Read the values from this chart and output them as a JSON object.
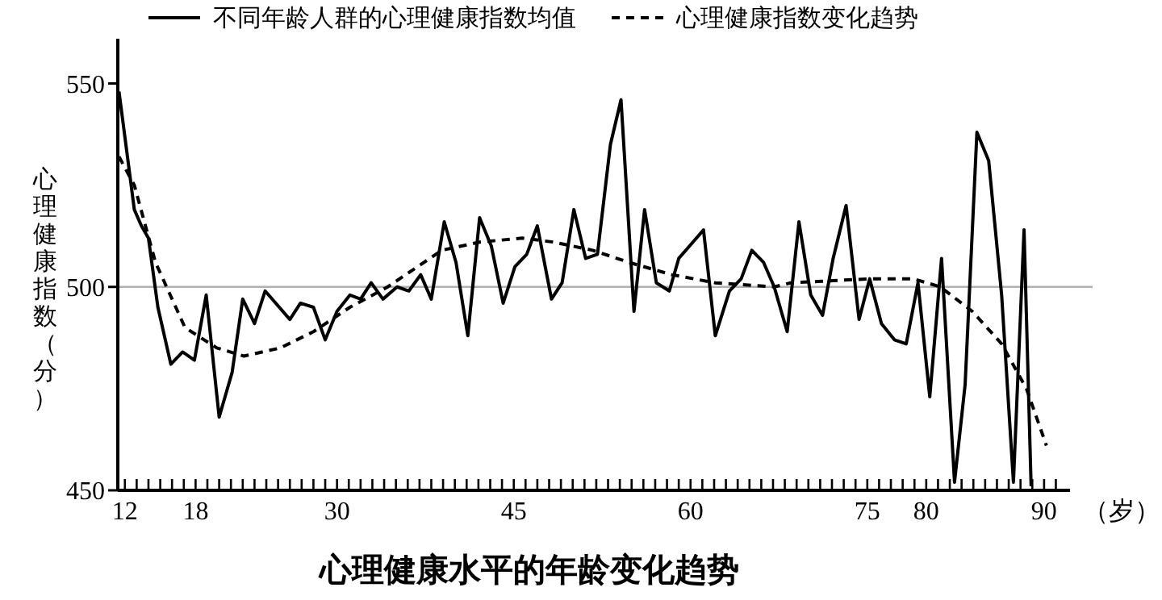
{
  "chart_data": {
    "type": "line",
    "title": "心理健康水平的年龄变化趋势",
    "xlabel": "（岁）",
    "ylabel": "心理健康指数（分）",
    "legend": "top",
    "xlim": [
      11.4,
      92.2
    ],
    "ylim": [
      450,
      561
    ],
    "xticks": [
      12,
      {
        "value": 13,
        "label": null
      },
      {
        "value": 14,
        "label": null
      },
      {
        "value": 15,
        "label": null
      },
      {
        "value": 16,
        "label": null
      },
      {
        "value": 17,
        "label": null
      },
      18,
      {
        "value": 19,
        "label": null
      },
      {
        "value": 20,
        "label": null
      },
      {
        "value": 21,
        "label": null
      },
      {
        "value": 22,
        "label": null
      },
      {
        "value": 23,
        "label": null
      },
      {
        "value": 24,
        "label": null
      },
      {
        "value": 25,
        "label": null
      },
      {
        "value": 26,
        "label": null
      },
      {
        "value": 27,
        "label": null
      },
      {
        "value": 28,
        "label": null
      },
      {
        "value": 29,
        "label": null
      },
      30,
      {
        "value": 31,
        "label": null
      },
      {
        "value": 32,
        "label": null
      },
      {
        "value": 33,
        "label": null
      },
      {
        "value": 34,
        "label": null
      },
      {
        "value": 35,
        "label": null
      },
      {
        "value": 36,
        "label": null
      },
      {
        "value": 37,
        "label": null
      },
      {
        "value": 38,
        "label": null
      },
      {
        "value": 39,
        "label": null
      },
      {
        "value": 40,
        "label": null
      },
      {
        "value": 41,
        "label": null
      },
      {
        "value": 42,
        "label": null
      },
      {
        "value": 43,
        "label": null
      },
      {
        "value": 44,
        "label": null
      },
      45,
      {
        "value": 46,
        "label": null
      },
      {
        "value": 47,
        "label": null
      },
      {
        "value": 48,
        "label": null
      },
      {
        "value": 49,
        "label": null
      },
      {
        "value": 50,
        "label": null
      },
      {
        "value": 51,
        "label": null
      },
      {
        "value": 52,
        "label": null
      },
      {
        "value": 53,
        "label": null
      },
      {
        "value": 54,
        "label": null
      },
      {
        "value": 55,
        "label": null
      },
      {
        "value": 56,
        "label": null
      },
      {
        "value": 57,
        "label": null
      },
      {
        "value": 58,
        "label": null
      },
      {
        "value": 59,
        "label": null
      },
      60,
      {
        "value": 61,
        "label": null
      },
      {
        "value": 62,
        "label": null
      },
      {
        "value": 63,
        "label": null
      },
      {
        "value": 64,
        "label": null
      },
      {
        "value": 65,
        "label": null
      },
      {
        "value": 66,
        "label": null
      },
      {
        "value": 67,
        "label": null
      },
      {
        "value": 68,
        "label": null
      },
      {
        "value": 69,
        "label": null
      },
      {
        "value": 70,
        "label": null
      },
      {
        "value": 71,
        "label": null
      },
      {
        "value": 72,
        "label": null
      },
      {
        "value": 73,
        "label": null
      },
      {
        "value": 74,
        "label": null
      },
      75,
      {
        "value": 76,
        "label": null
      },
      {
        "value": 77,
        "label": null
      },
      {
        "value": 78,
        "label": null
      },
      {
        "value": 79,
        "label": null
      },
      80,
      {
        "value": 81,
        "label": null
      },
      {
        "value": 82,
        "label": null
      },
      {
        "value": 83,
        "label": null
      },
      {
        "value": 84,
        "label": null
      },
      {
        "value": 85,
        "label": null
      },
      {
        "value": 86,
        "label": null
      },
      {
        "value": 87,
        "label": null
      },
      {
        "value": 88,
        "label": null
      },
      {
        "value": 89,
        "label": null
      },
      90,
      {
        "value": 91,
        "label": null
      }
    ],
    "yticks": [
      450,
      500,
      550
    ],
    "ref_lines": [
      {
        "axis": "y",
        "value": 500,
        "color": "#b0b0b0"
      }
    ],
    "series": [
      {
        "name": "不同年龄人群的心理健康指数均值",
        "color": "#000000",
        "line_style": "solid",
        "x": [
          11.5,
          12.8,
          13.4,
          14.0,
          14.8,
          15.9,
          16.9,
          17.9,
          18.9,
          20.0,
          21.1,
          22.0,
          23.0,
          23.9,
          26.0,
          26.9,
          28.0,
          29.0,
          30.0,
          31.1,
          32.0,
          32.9,
          33.9,
          35.1,
          36.1,
          37.1,
          38.0,
          39.1,
          40.1,
          41.1,
          42.1,
          43.1,
          44.1,
          45.1,
          46.1,
          47.0,
          48.2,
          49.1,
          50.1,
          51.1,
          52.1,
          53.2,
          54.1,
          55.2,
          56.1,
          57.1,
          58.2,
          59.0,
          60.2,
          61.1,
          62.1,
          63.3,
          64.3,
          65.2,
          66.2,
          67.1,
          68.2,
          69.2,
          70.2,
          71.2,
          72.1,
          73.2,
          74.3,
          75.2,
          76.2,
          77.3,
          78.3,
          79.3,
          80.3,
          81.3,
          82.4,
          83.3,
          84.3,
          85.3,
          86.4,
          87.4,
          88.3,
          88.9
        ],
        "values": [
          548,
          519,
          515,
          512,
          495,
          481,
          484,
          482,
          498,
          468,
          479,
          497,
          491,
          499,
          492,
          496,
          495,
          487,
          494,
          498,
          497,
          501,
          497,
          500,
          499,
          503,
          497,
          516,
          506,
          488,
          517,
          510,
          496,
          505,
          508,
          515,
          497,
          501,
          519,
          507,
          508,
          535,
          546,
          494,
          519,
          501,
          499,
          507,
          511,
          514,
          488,
          499,
          502,
          509,
          506,
          500,
          489,
          516,
          498,
          493,
          507,
          520,
          492,
          502,
          491,
          487,
          486,
          501,
          473,
          507,
          452,
          476,
          538,
          531,
          498,
          452,
          514,
          451
        ]
      },
      {
        "name": "心理健康指数变化趋势",
        "color": "#000000",
        "line_style": "dashed",
        "x": [
          11.5,
          12.8,
          14.6,
          17.1,
          19.8,
          22.1,
          25.2,
          28.0,
          31.1,
          34.3,
          38.9,
          42.1,
          45.7,
          48.4,
          51.7,
          54.8,
          58.4,
          62.1,
          67.1,
          68.5,
          75.3,
          78.9,
          81.2,
          83.9,
          86.4,
          88.5,
          90.2
        ],
        "values": [
          532,
          525,
          506,
          490,
          485,
          483,
          485,
          489,
          495,
          500,
          509,
          511,
          512,
          511,
          509,
          506,
          503,
          501,
          500,
          501,
          502,
          502,
          500,
          494,
          486,
          475,
          461
        ]
      }
    ]
  }
}
